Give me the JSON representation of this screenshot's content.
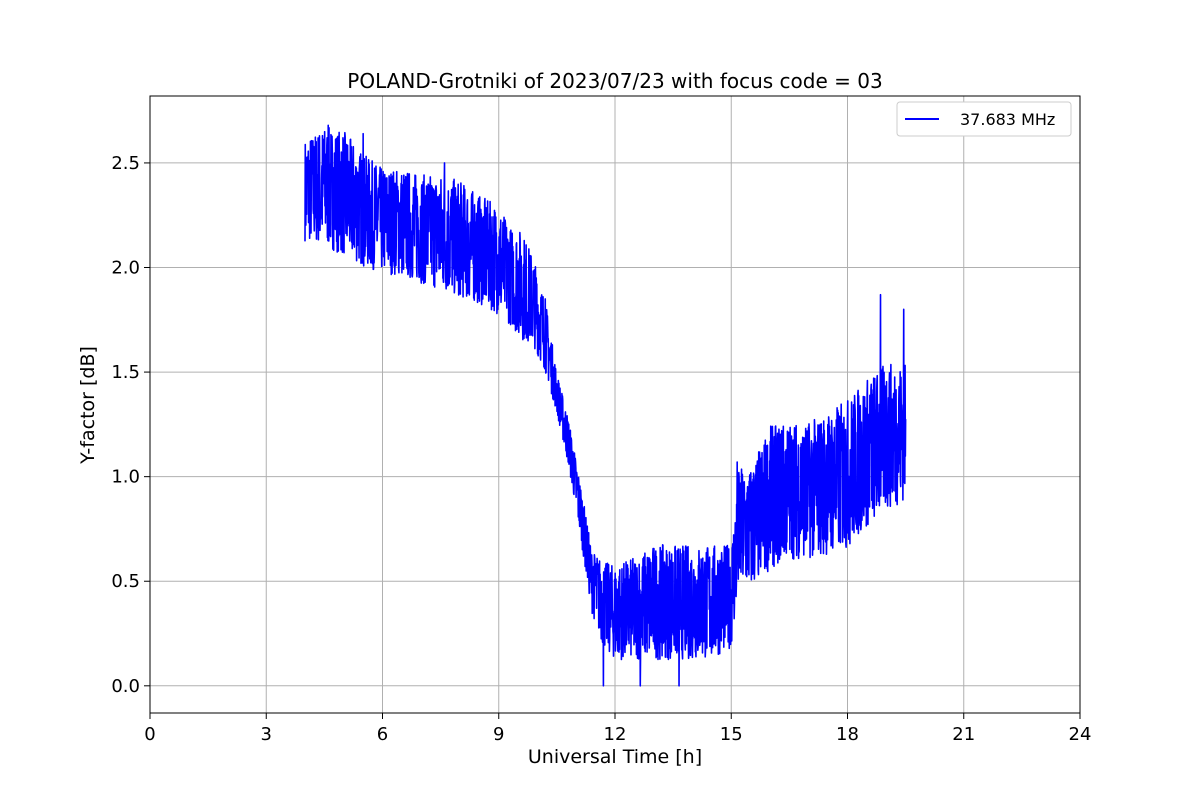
{
  "chart_data": {
    "type": "line",
    "title": "POLAND-Grotniki of 2023/07/23 with focus code = 03",
    "xlabel": "Universal Time [h]",
    "ylabel": "Y-factor [dB]",
    "xlim": [
      0,
      24
    ],
    "ylim": [
      -0.13,
      2.82
    ],
    "xticks": [
      0,
      3,
      6,
      9,
      12,
      15,
      18,
      21,
      24
    ],
    "xtick_labels": [
      "0",
      "3",
      "6",
      "9",
      "12",
      "15",
      "18",
      "21",
      "24"
    ],
    "yticks": [
      0.0,
      0.5,
      1.0,
      1.5,
      2.0,
      2.5
    ],
    "ytick_labels": [
      "0.0",
      "0.5",
      "1.0",
      "1.5",
      "2.0",
      "2.5"
    ],
    "grid": true,
    "legend_position": "top-right",
    "series": [
      {
        "name": "37.683 MHz",
        "color": "#0000ff",
        "envelope": {
          "x": [
            4.0,
            4.5,
            5.0,
            5.5,
            6.0,
            6.5,
            7.0,
            7.5,
            8.0,
            8.5,
            9.0,
            9.3,
            9.6,
            9.9,
            10.2,
            10.5,
            10.8,
            11.1,
            11.4,
            11.7,
            12.0,
            12.5,
            13.0,
            13.5,
            14.0,
            14.5,
            15.0,
            15.2,
            15.5,
            16.0,
            16.5,
            17.0,
            17.5,
            18.0,
            18.5,
            19.0,
            19.5
          ],
          "low": [
            2.12,
            2.1,
            2.05,
            2.0,
            1.97,
            1.95,
            1.92,
            1.88,
            1.85,
            1.82,
            1.77,
            1.72,
            1.65,
            1.62,
            1.5,
            1.3,
            1.05,
            0.72,
            0.35,
            0.18,
            0.12,
            0.12,
            0.12,
            0.12,
            0.12,
            0.12,
            0.18,
            0.45,
            0.45,
            0.55,
            0.6,
            0.6,
            0.62,
            0.65,
            0.75,
            0.83,
            0.88
          ],
          "high": [
            2.62,
            2.68,
            2.66,
            2.55,
            2.48,
            2.48,
            2.45,
            2.45,
            2.42,
            2.35,
            2.3,
            2.2,
            2.18,
            2.05,
            1.85,
            1.5,
            1.28,
            0.98,
            0.65,
            0.6,
            0.58,
            0.62,
            0.68,
            0.68,
            0.68,
            0.68,
            0.68,
            1.05,
            1.05,
            1.25,
            1.27,
            1.27,
            1.32,
            1.38,
            1.48,
            1.55,
            1.55
          ]
        },
        "peaks": [
          [
            4.6,
            2.68
          ],
          [
            5.5,
            2.64
          ],
          [
            7.6,
            2.5
          ],
          [
            10.2,
            1.85
          ],
          [
            11.7,
            0.0
          ],
          [
            12.65,
            0.0
          ],
          [
            13.65,
            0.0
          ],
          [
            15.15,
            1.07
          ],
          [
            16.3,
            1.22
          ],
          [
            18.85,
            1.87
          ],
          [
            19.45,
            1.79
          ],
          [
            19.45,
            1.8
          ]
        ]
      }
    ]
  }
}
